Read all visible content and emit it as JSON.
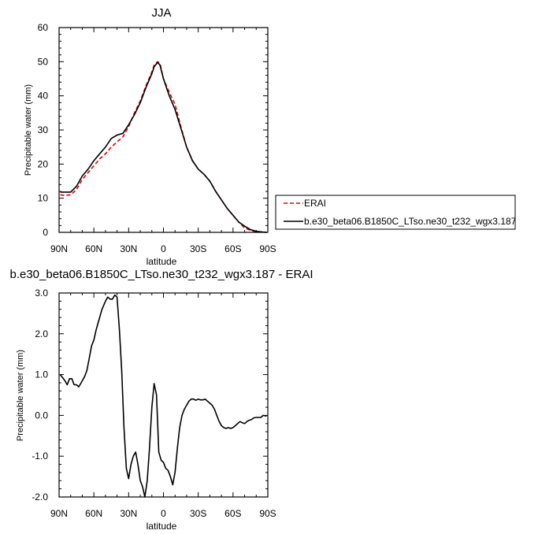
{
  "chart_data": [
    {
      "type": "line",
      "title": "JJA",
      "xlabel": "latitude",
      "ylabel": "Precipitable water (mm)",
      "xlim": [
        90,
        -90
      ],
      "ylim": [
        0,
        60
      ],
      "x_ticks": [
        90,
        60,
        30,
        0,
        -30,
        -60,
        -90
      ],
      "x_tick_labels": [
        "90N",
        "60N",
        "30N",
        "0",
        "30S",
        "60S",
        "90S"
      ],
      "y_ticks": [
        0,
        10,
        20,
        30,
        40,
        50,
        60
      ],
      "y_tick_labels": [
        "0",
        "10",
        "20",
        "30",
        "40",
        "50",
        "60"
      ],
      "legend_position": "right",
      "series": [
        {
          "name": "ERAI",
          "color": "#e00000",
          "dash": "dashed",
          "x": [
            89,
            85,
            80,
            75,
            70,
            65,
            60,
            55,
            50,
            45,
            40,
            35,
            30,
            25,
            20,
            15,
            10,
            8,
            5,
            3,
            0,
            -5,
            -10,
            -15,
            -20,
            -25,
            -30,
            -35,
            -40,
            -45,
            -50,
            -55,
            -60,
            -65,
            -70,
            -75,
            -80,
            -85,
            -89
          ],
          "y": [
            11.0,
            10.8,
            11.0,
            12.5,
            15.5,
            17.5,
            19.5,
            21.5,
            23.0,
            25.0,
            26.5,
            28.0,
            31.0,
            35.0,
            38.5,
            43.0,
            47.0,
            49.0,
            50.0,
            49.5,
            45.0,
            41.0,
            37.5,
            31.0,
            25.0,
            21.0,
            18.5,
            17.0,
            15.0,
            12.0,
            9.5,
            7.0,
            5.0,
            3.0,
            1.3,
            0.6,
            0.2,
            0.1,
            0.0
          ]
        },
        {
          "name": "b.e30_beta06.B1850C_LTso.ne30_t232_wgx3.187",
          "color": "#000000",
          "dash": "solid",
          "x": [
            89,
            85,
            80,
            75,
            70,
            65,
            60,
            55,
            50,
            45,
            40,
            35,
            30,
            25,
            20,
            15,
            10,
            8,
            5,
            3,
            0,
            -5,
            -10,
            -15,
            -20,
            -25,
            -30,
            -35,
            -40,
            -45,
            -50,
            -55,
            -60,
            -65,
            -70,
            -75,
            -80,
            -85,
            -89
          ],
          "y": [
            11.8,
            11.8,
            11.8,
            13.5,
            16.5,
            18.5,
            21.0,
            23.0,
            25.0,
            27.5,
            28.5,
            29.0,
            31.5,
            34.5,
            38.0,
            42.5,
            46.5,
            48.5,
            49.8,
            49.0,
            45.0,
            40.0,
            36.0,
            30.5,
            25.0,
            21.0,
            18.5,
            17.0,
            15.0,
            12.0,
            9.5,
            7.0,
            5.0,
            3.0,
            1.8,
            0.8,
            0.3,
            0.1,
            0.0
          ]
        }
      ]
    },
    {
      "type": "line",
      "title": "b.e30_beta06.B1850C_LTso.ne30_t232_wgx3.187 - ERAI",
      "xlabel": "latitude",
      "ylabel": "Precipitable water (mm)",
      "xlim": [
        90,
        -90
      ],
      "ylim": [
        -2.0,
        3.0
      ],
      "x_ticks": [
        90,
        60,
        30,
        0,
        -30,
        -60,
        -90
      ],
      "x_tick_labels": [
        "90N",
        "60N",
        "30N",
        "0",
        "30S",
        "60S",
        "90S"
      ],
      "y_ticks": [
        -2.0,
        -1.0,
        0.0,
        1.0,
        2.0,
        3.0
      ],
      "y_tick_labels": [
        "-2.0",
        "-1.0",
        "0.0",
        "1.0",
        "2.0",
        "3.0"
      ],
      "series": [
        {
          "color": "#000000",
          "x": [
            89,
            85,
            83,
            81,
            79,
            77,
            75,
            73,
            71,
            68,
            66,
            64,
            62,
            60,
            58,
            55,
            53,
            50,
            48,
            46,
            44,
            42,
            40,
            38,
            36,
            34,
            32,
            30,
            28,
            26,
            24,
            22,
            20,
            18,
            16,
            14,
            12,
            10,
            8,
            6,
            4,
            2,
            0,
            -2,
            -4,
            -6,
            -8,
            -10,
            -12,
            -14,
            -16,
            -18,
            -20,
            -22,
            -24,
            -26,
            -28,
            -30,
            -32,
            -34,
            -36,
            -38,
            -40,
            -42,
            -44,
            -46,
            -48,
            -50,
            -52,
            -54,
            -56,
            -58,
            -60,
            -62,
            -64,
            -66,
            -68,
            -70,
            -72,
            -74,
            -76,
            -78,
            -80,
            -82,
            -84,
            -86,
            -89
          ],
          "y": [
            1.0,
            0.85,
            0.75,
            0.9,
            0.9,
            0.75,
            0.75,
            0.7,
            0.8,
            0.95,
            1.1,
            1.4,
            1.7,
            1.85,
            2.1,
            2.4,
            2.6,
            2.8,
            2.9,
            2.85,
            2.85,
            2.95,
            2.9,
            2.1,
            1.1,
            -0.3,
            -1.3,
            -1.55,
            -1.2,
            -1.0,
            -0.9,
            -1.2,
            -1.6,
            -1.75,
            -2.0,
            -1.6,
            -0.8,
            0.2,
            0.78,
            0.5,
            -0.9,
            -1.1,
            -1.15,
            -1.3,
            -1.35,
            -1.5,
            -1.7,
            -1.4,
            -0.8,
            -0.3,
            0.0,
            0.15,
            0.25,
            0.35,
            0.4,
            0.4,
            0.37,
            0.4,
            0.38,
            0.38,
            0.4,
            0.35,
            0.3,
            0.25,
            0.15,
            0.0,
            -0.15,
            -0.25,
            -0.3,
            -0.32,
            -0.3,
            -0.32,
            -0.3,
            -0.25,
            -0.2,
            -0.15,
            -0.18,
            -0.2,
            -0.15,
            -0.12,
            -0.1,
            -0.06,
            -0.05,
            -0.05,
            -0.05,
            0.0,
            -0.02
          ]
        }
      ]
    }
  ]
}
